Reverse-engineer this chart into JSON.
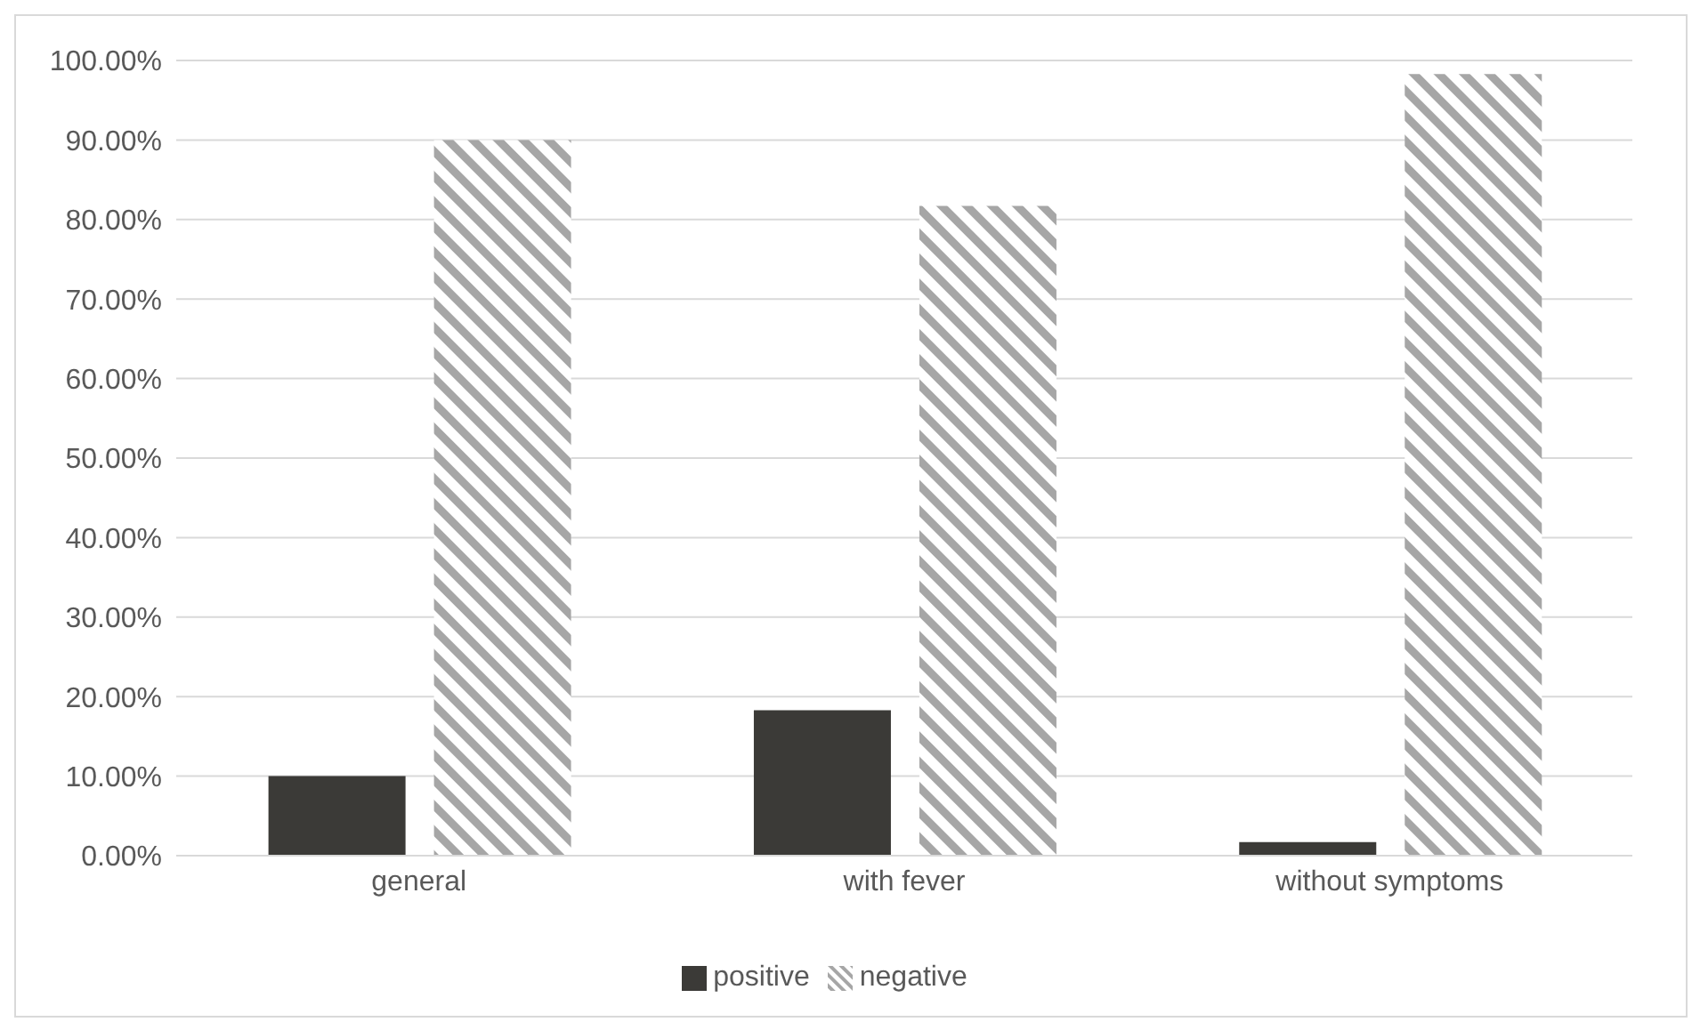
{
  "chart_data": {
    "type": "bar",
    "categories": [
      "general",
      "with fever",
      "without symptoms"
    ],
    "series": [
      {
        "name": "positive",
        "color": "#3b3a37",
        "values": [
          10.0,
          18.3,
          1.7
        ]
      },
      {
        "name": "negative",
        "color": "#a6a6a6",
        "values": [
          90.0,
          81.7,
          98.3
        ]
      }
    ],
    "ylim": [
      0,
      100
    ],
    "yticks": [
      {
        "value": 0,
        "label": "0.00%"
      },
      {
        "value": 10,
        "label": "10.00%"
      },
      {
        "value": 20,
        "label": "20.00%"
      },
      {
        "value": 30,
        "label": "30.00%"
      },
      {
        "value": 40,
        "label": "40.00%"
      },
      {
        "value": 50,
        "label": "50.00%"
      },
      {
        "value": 60,
        "label": "60.00%"
      },
      {
        "value": 70,
        "label": "70.00%"
      },
      {
        "value": 80,
        "label": "80.00%"
      },
      {
        "value": 90,
        "label": "90.00%"
      },
      {
        "value": 100,
        "label": "100.00%"
      }
    ],
    "grid": "y",
    "legend": "bottom"
  }
}
